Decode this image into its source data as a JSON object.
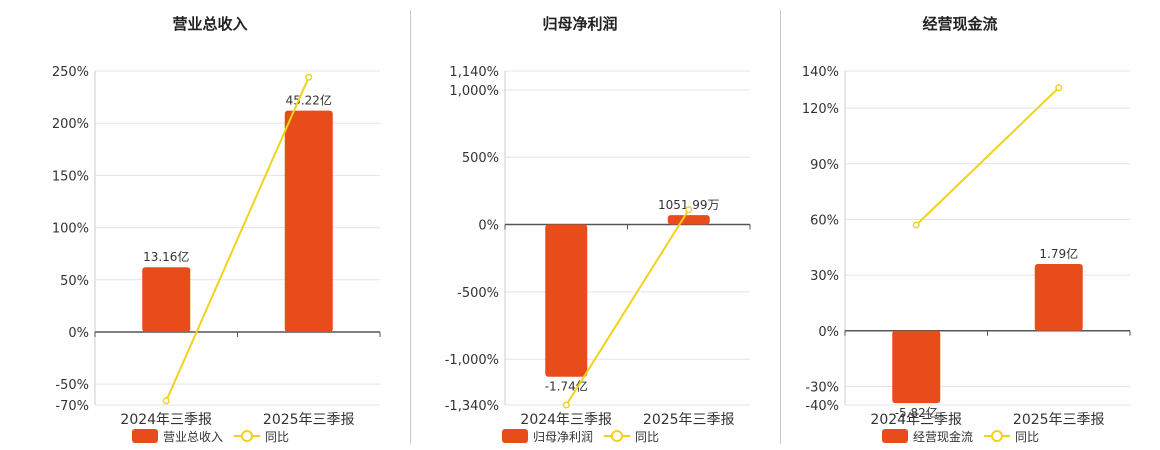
{
  "colors": {
    "bar": "#e84c1a",
    "line": "#f2d21c",
    "grid": "#e3e3ee",
    "axis": "#555555",
    "text": "#333333",
    "title": "#222222"
  },
  "chart_data": [
    {
      "type": "bar",
      "title": "营业总收入",
      "categories": [
        "2024年三季报",
        "2025年三季报"
      ],
      "ylim": [
        -70,
        250
      ],
      "yticks": [
        250,
        200,
        150,
        100,
        50,
        0,
        -50,
        -70
      ],
      "ytick_labels": [
        "250%",
        "200%",
        "150%",
        "100%",
        "50%",
        "0%",
        "-50%",
        "-70%"
      ],
      "grid": true,
      "legend_position": "bottom-center",
      "series": [
        {
          "name": "营业总收入",
          "kind": "bar",
          "values": [
            62,
            212
          ],
          "labels": [
            "13.16亿",
            "45.22亿"
          ]
        },
        {
          "name": "同比",
          "kind": "line",
          "values": [
            -66,
            244
          ]
        }
      ]
    },
    {
      "type": "bar",
      "title": "归母净利润",
      "categories": [
        "2024年三季报",
        "2025年三季报"
      ],
      "ylim": [
        -1340,
        1140
      ],
      "yticks": [
        1140,
        1000,
        500,
        0,
        -500,
        -1000,
        -1340
      ],
      "ytick_labels": [
        "1,140%",
        "1,000%",
        "500%",
        "0%",
        "-500%",
        "-1,000%",
        "-1,340%"
      ],
      "grid": true,
      "legend_position": "bottom-center",
      "series": [
        {
          "name": "归母净利润",
          "kind": "bar",
          "values": [
            -1130,
            70
          ],
          "labels": [
            "-1.74亿",
            "1051.99万"
          ]
        },
        {
          "name": "同比",
          "kind": "line",
          "values": [
            -1340,
            110
          ]
        }
      ]
    },
    {
      "type": "bar",
      "title": "经营现金流",
      "categories": [
        "2024年三季报",
        "2025年三季报"
      ],
      "ylim": [
        -40,
        140
      ],
      "yticks": [
        140,
        120,
        90,
        60,
        30,
        0,
        -30,
        -40
      ],
      "ytick_labels": [
        "140%",
        "120%",
        "90%",
        "60%",
        "30%",
        "0%",
        "-30%",
        "-40%"
      ],
      "grid": true,
      "legend_position": "bottom-center",
      "series": [
        {
          "name": "经营现金流",
          "kind": "bar",
          "values": [
            -39,
            36
          ],
          "labels": [
            "-5.82亿",
            "1.79亿"
          ]
        },
        {
          "name": "同比",
          "kind": "line",
          "values": [
            57,
            131
          ]
        }
      ]
    }
  ]
}
